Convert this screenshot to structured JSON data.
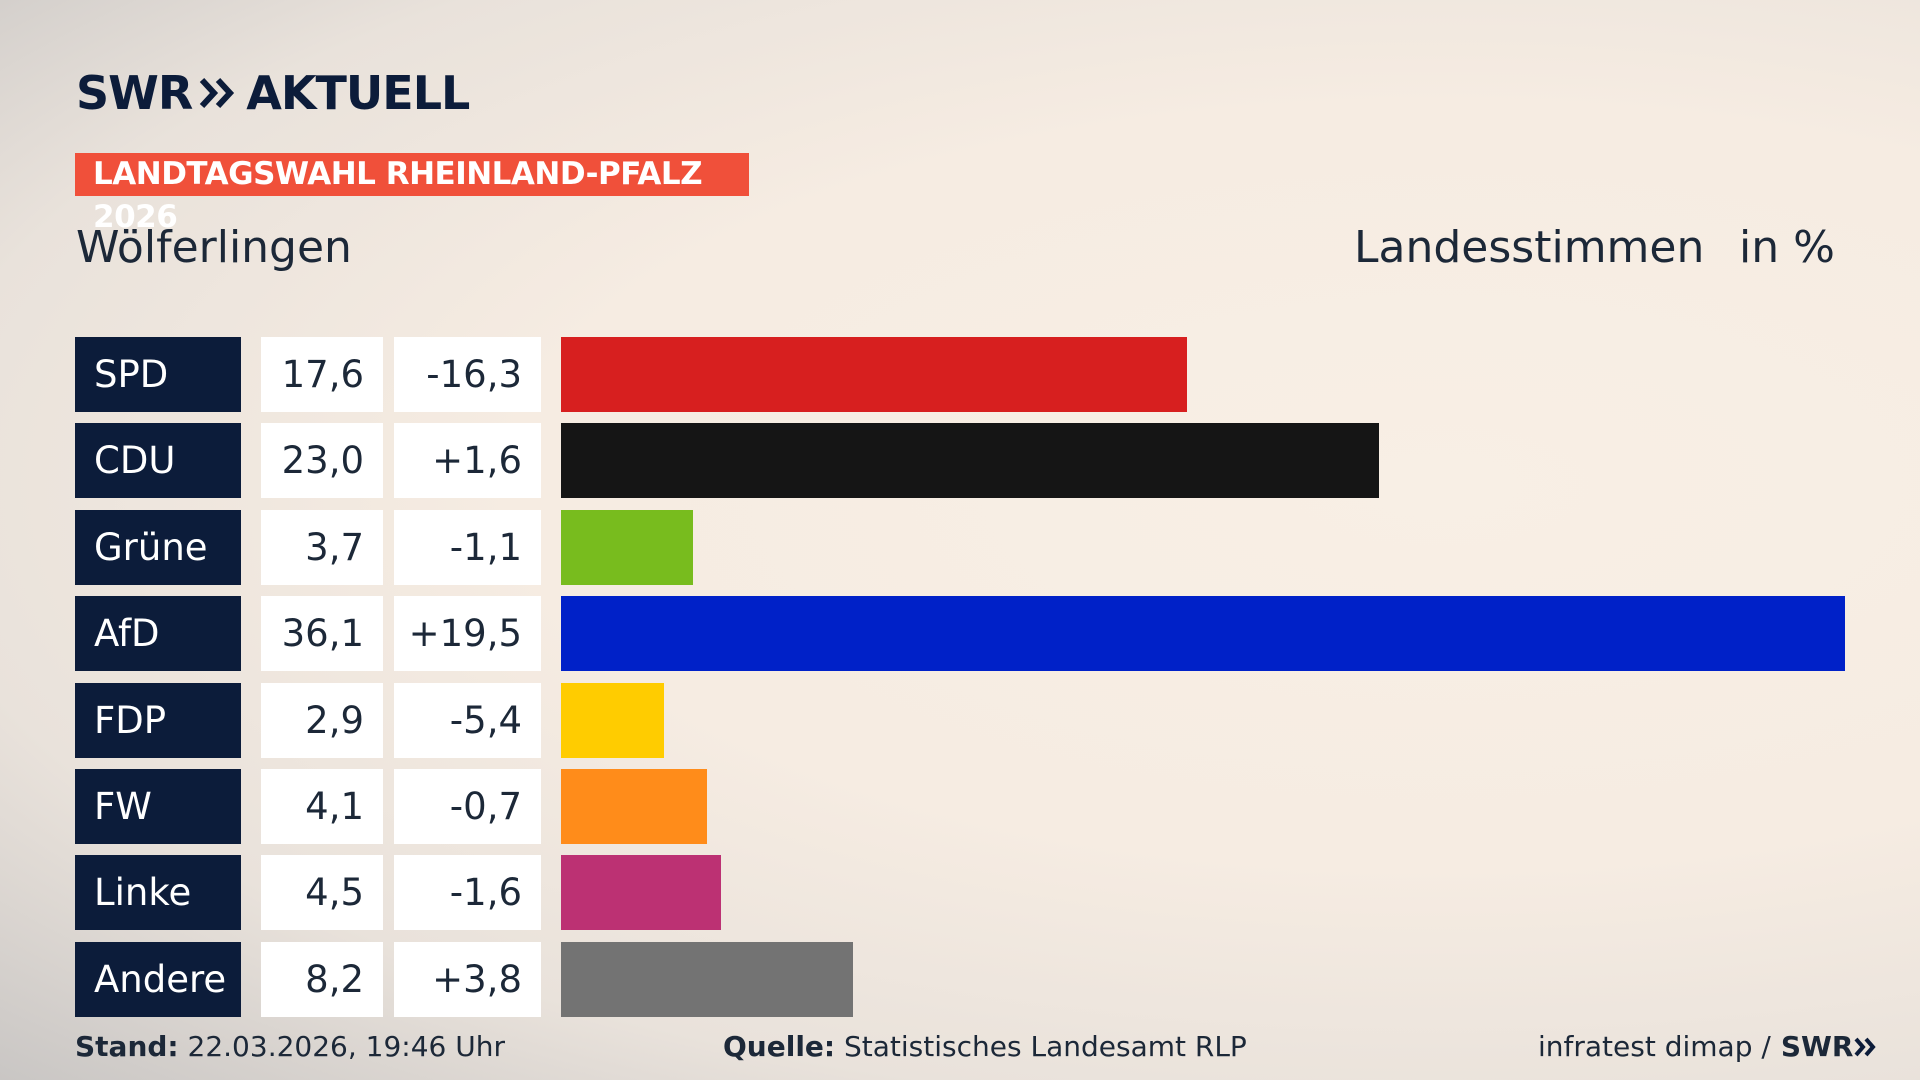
{
  "header": {
    "brand": "SWR",
    "brand_suffix": "AKTUELL",
    "banner": "LANDTAGSWAHL RHEINLAND-PFALZ 2026"
  },
  "chart_data": {
    "type": "bar",
    "title": "Wölferlingen",
    "subtitle": "Landesstimmen",
    "unit": "in %",
    "categories": [
      "SPD",
      "CDU",
      "Grüne",
      "AfD",
      "FDP",
      "FW",
      "Linke",
      "Andere"
    ],
    "values": [
      17.6,
      23.0,
      3.7,
      36.1,
      2.9,
      4.1,
      4.5,
      8.2
    ],
    "value_labels": [
      "17,6",
      "23,0",
      "3,7",
      "36,1",
      "2,9",
      "4,1",
      "4,5",
      "8,2"
    ],
    "change_labels": [
      "-16,3",
      "+1,6",
      "-1,1",
      "+19,5",
      "-5,4",
      "-0,7",
      "-1,6",
      "+3,8"
    ],
    "colors": [
      "#d71f1f",
      "#151515",
      "#78bc1e",
      "#0021c8",
      "#ffcc00",
      "#ff8c1a",
      "#bc3173",
      "#737373"
    ]
  },
  "footer": {
    "stand_label": "Stand:",
    "stand": "22.03.2026, 19:46 Uhr",
    "source_label": "Quelle:",
    "source": "Statistisches Landesamt RLP",
    "credit": "infratest dimap /",
    "credit_brand": "SWR"
  }
}
